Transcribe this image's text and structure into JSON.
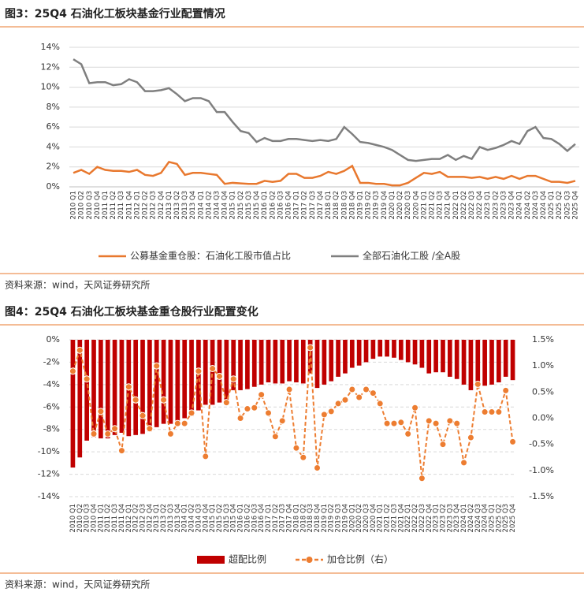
{
  "chart_data": [
    {
      "type": "line",
      "title": "图3：25Q4 石油化工板块基金行业配置情况",
      "source": "资料来源：wind，天风证券研究所",
      "categories": [
        "2010 Q1",
        "2010 Q2",
        "2010 Q3",
        "2010 Q4",
        "2011 Q1",
        "2011 Q2",
        "2011 Q3",
        "2011 Q4",
        "2012 Q1",
        "2012 Q2",
        "2012 Q3",
        "2012 Q4",
        "2013 Q1",
        "2013 Q2",
        "2013 Q3",
        "2013 Q4",
        "2014 Q1",
        "2014 Q2",
        "2014 Q3",
        "2014 Q4",
        "2015 Q1",
        "2015 Q2",
        "2015 Q3",
        "2015 Q4",
        "2016 Q1",
        "2016 Q2",
        "2016 Q3",
        "2016 Q4",
        "2017 Q1",
        "2017 Q2",
        "2017 Q3",
        "2017 Q4",
        "2018 Q1",
        "2018 Q2",
        "2018 Q3",
        "2018 Q4",
        "2019 Q1",
        "2019 Q2",
        "2019 Q3",
        "2019 Q4",
        "2020 Q1",
        "2020 Q2",
        "2020 Q3",
        "2020 Q4",
        "2021 Q1",
        "2021 Q2",
        "2021 Q3",
        "2021 Q4",
        "2022 Q1",
        "2022 Q2",
        "2022 Q3",
        "2022 Q4",
        "2023 Q1",
        "2023 Q2",
        "2023 Q3",
        "2023 Q4",
        "2024 Q1",
        "2024 Q2",
        "2024 Q3",
        "2024 Q4",
        "2025 Q1",
        "2025 Q2",
        "2025 Q3",
        "2025 Q4"
      ],
      "series": [
        {
          "name": "公募基金重仓股：石油化工股市值占比",
          "color": "#e8782e",
          "values": [
            1.4,
            1.7,
            1.3,
            2.0,
            1.7,
            1.6,
            1.6,
            1.5,
            1.7,
            1.2,
            1.1,
            1.4,
            2.5,
            2.3,
            1.2,
            1.4,
            1.4,
            1.3,
            1.2,
            0.3,
            0.4,
            0.35,
            0.3,
            0.3,
            0.6,
            0.5,
            0.6,
            1.3,
            1.3,
            0.9,
            0.9,
            1.1,
            1.5,
            1.3,
            1.6,
            2.1,
            0.4,
            0.4,
            0.3,
            0.3,
            0.15,
            0.15,
            0.4,
            0.9,
            1.4,
            1.3,
            1.5,
            1.0,
            1.0,
            1.0,
            0.9,
            1.0,
            0.8,
            1.0,
            0.8,
            1.1,
            0.8,
            1.1,
            1.1,
            0.8,
            0.5,
            0.5,
            0.4,
            0.6
          ]
        },
        {
          "name": "全部石油化工股 /全A股",
          "color": "#7f7f7f",
          "values": [
            12.8,
            12.3,
            10.4,
            10.5,
            10.5,
            10.2,
            10.3,
            10.8,
            10.5,
            9.6,
            9.6,
            9.7,
            9.9,
            9.3,
            8.6,
            8.9,
            8.9,
            8.6,
            7.5,
            7.5,
            6.5,
            5.6,
            5.4,
            4.5,
            4.9,
            4.6,
            4.6,
            4.8,
            4.8,
            4.7,
            4.6,
            4.7,
            4.6,
            4.8,
            6.0,
            5.3,
            4.5,
            4.4,
            4.2,
            4.0,
            3.7,
            3.2,
            2.7,
            2.6,
            2.7,
            2.8,
            2.8,
            3.2,
            2.7,
            3.1,
            2.8,
            4.0,
            3.7,
            3.9,
            4.2,
            4.6,
            4.3,
            5.6,
            6.0,
            4.9,
            4.8,
            4.3,
            3.6,
            4.3
          ]
        }
      ],
      "ylim": [
        0,
        14
      ],
      "yticks": [
        {
          "value": 0,
          "label": "0%"
        },
        {
          "value": 2,
          "label": "2%"
        },
        {
          "value": 4,
          "label": "4%"
        },
        {
          "value": 6,
          "label": "6%"
        },
        {
          "value": 8,
          "label": "8%"
        },
        {
          "value": 10,
          "label": "10%"
        },
        {
          "value": 12,
          "label": "12%"
        },
        {
          "value": 14,
          "label": "14%"
        }
      ],
      "grid": true,
      "grid_style": "solid"
    },
    {
      "type": "combo",
      "title": "图4：25Q4 石油化工板块基金重仓股行业配置变化",
      "source": "资料来源：wind，天风证券研究所",
      "categories": [
        "2010 Q1",
        "2010 Q2",
        "2010 Q3",
        "2010 Q4",
        "2011 Q1",
        "2011 Q2",
        "2011 Q3",
        "2011 Q4",
        "2012 Q1",
        "2012 Q2",
        "2012 Q3",
        "2012 Q4",
        "2013 Q1",
        "2013 Q2",
        "2013 Q3",
        "2013 Q4",
        "2014 Q1",
        "2014 Q2",
        "2014 Q3",
        "2014 Q4",
        "2015 Q1",
        "2015 Q2",
        "2015 Q3",
        "2015 Q4",
        "2016 Q1",
        "2016 Q2",
        "2016 Q3",
        "2016 Q4",
        "2017 Q1",
        "2017 Q2",
        "2017 Q3",
        "2017 Q4",
        "2018 Q1",
        "2018 Q2",
        "2018 Q3",
        "2018 Q4",
        "2019 Q1",
        "2019 Q2",
        "2019 Q3",
        "2019 Q4",
        "2020 Q1",
        "2020 Q2",
        "2020 Q3",
        "2020 Q4",
        "2021 Q1",
        "2021 Q2",
        "2021 Q3",
        "2021 Q4",
        "2022 Q1",
        "2022 Q2",
        "2022 Q3",
        "2022 Q4",
        "2023 Q1",
        "2023 Q2",
        "2023 Q3",
        "2023 Q4",
        "2024 Q1",
        "2024 Q2",
        "2024 Q3",
        "2024 Q4",
        "2025 Q1",
        "2025 Q2",
        "2025 Q3",
        "2025 Q4"
      ],
      "series": [
        {
          "name": "超配比例",
          "type": "bar",
          "color": "#c00000",
          "values": [
            -11.4,
            -10.5,
            -9.0,
            -8.7,
            -8.8,
            -8.8,
            -8.5,
            -8.3,
            -8.6,
            -8.5,
            -8.4,
            -8.2,
            -7.8,
            -7.5,
            -7.5,
            -7.6,
            -7.0,
            -6.8,
            -6.3,
            -5.8,
            -5.8,
            -5.6,
            -5.5,
            -4.5,
            -4.5,
            -4.4,
            -4.2,
            -4.0,
            -3.8,
            -3.9,
            -3.9,
            -3.7,
            -3.8,
            -3.9,
            -3.0,
            -4.3,
            -4.0,
            -3.7,
            -3.3,
            -3.0,
            -2.5,
            -2.3,
            -2.0,
            -1.7,
            -1.5,
            -1.5,
            -1.6,
            -1.8,
            -2.0,
            -2.2,
            -2.5,
            -3.0,
            -2.9,
            -2.9,
            -3.3,
            -3.5,
            -4.0,
            -4.5,
            -4.2,
            -4.1,
            -4.0,
            -3.8,
            -3.3,
            -3.6
          ]
        },
        {
          "name": "加仓比例（右）",
          "type": "line",
          "axis": "y2",
          "color": "#ed7d31",
          "values": [
            0.9,
            1.3,
            0.75,
            -0.3,
            0.13,
            -0.3,
            -0.2,
            -0.62,
            0.6,
            0.35,
            0.05,
            -0.2,
            1.0,
            0.35,
            -0.3,
            -0.1,
            -0.1,
            0.1,
            0.9,
            -0.73,
            0.95,
            0.8,
            0.3,
            0.75,
            0.0,
            0.18,
            0.2,
            0.45,
            0.1,
            -0.35,
            -0.05,
            0.55,
            -0.57,
            -0.75,
            1.35,
            -0.95,
            0.07,
            0.13,
            0.28,
            0.35,
            0.55,
            0.4,
            0.55,
            0.48,
            0.28,
            -0.1,
            -0.1,
            -0.08,
            -0.3,
            0.2,
            -1.15,
            -0.05,
            -0.1,
            -0.5,
            -0.05,
            -0.1,
            -0.85,
            -0.37,
            0.65,
            0.12,
            0.12,
            0.12,
            0.53,
            -0.45
          ]
        }
      ],
      "ylim": [
        -14,
        0
      ],
      "yticks": [
        {
          "value": 0,
          "label": "0%"
        },
        {
          "value": -2,
          "label": "-2%"
        },
        {
          "value": -4,
          "label": "-4%"
        },
        {
          "value": -6,
          "label": "-6%"
        },
        {
          "value": -8,
          "label": "-8%"
        },
        {
          "value": -10,
          "label": "-10%"
        },
        {
          "value": -12,
          "label": "-12%"
        },
        {
          "value": -14,
          "label": "-14%"
        }
      ],
      "y2lim": [
        -1.5,
        1.5
      ],
      "y2ticks": [
        {
          "value": 1.5,
          "label": "1.5%"
        },
        {
          "value": 1.0,
          "label": "1.0%"
        },
        {
          "value": 0.5,
          "label": "0.5%"
        },
        {
          "value": 0.0,
          "label": "0.0%"
        },
        {
          "value": -0.5,
          "label": "-0.5%"
        },
        {
          "value": -1.0,
          "label": "-1.0%"
        },
        {
          "value": -1.5,
          "label": "-1.5%"
        }
      ],
      "grid": true,
      "grid_style": "dashed"
    }
  ]
}
